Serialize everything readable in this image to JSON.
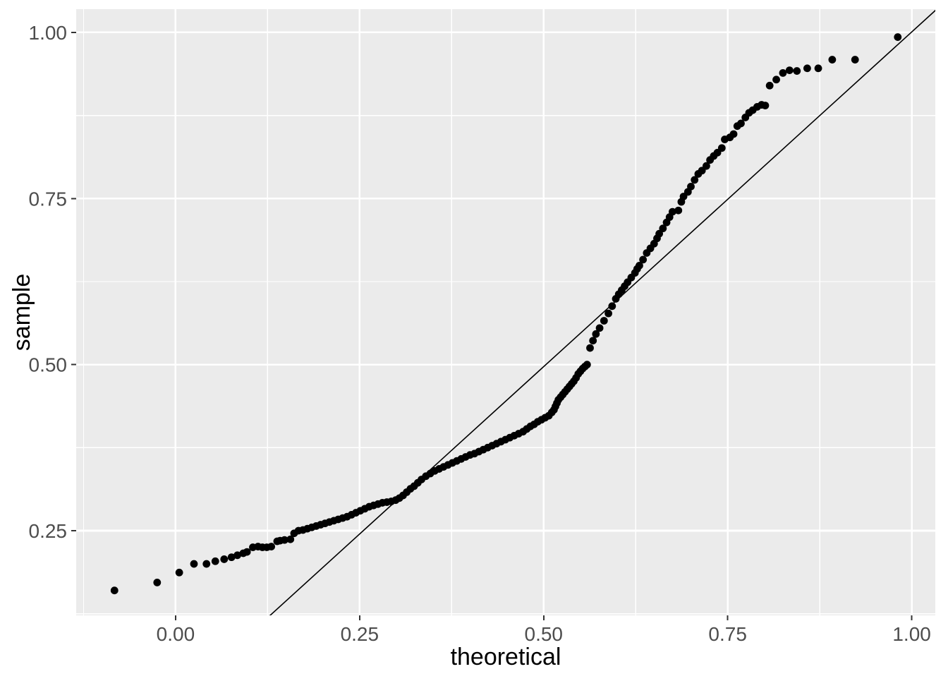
{
  "figure": {
    "background": "#FFFFFF"
  },
  "chart_data": {
    "type": "scatter",
    "subtype": "qq-plot",
    "title": "",
    "xlabel": "theoretical",
    "ylabel": "sample",
    "xlim": [
      -0.135,
      1.032
    ],
    "ylim": [
      0.1225,
      1.035
    ],
    "grid": "on",
    "legend": "none",
    "x_ticks": {
      "values": [
        0,
        0.25,
        0.5,
        0.75,
        1.0
      ],
      "labels": [
        "0.00",
        "0.25",
        "0.50",
        "0.75",
        "1.00"
      ]
    },
    "y_ticks": {
      "values": [
        0.25,
        0.5,
        0.75,
        1.0
      ],
      "labels": [
        "0.25",
        "0.50",
        "0.75",
        "1.00"
      ]
    },
    "x_minor_ticks": [
      -0.125,
      0.125,
      0.375,
      0.625,
      0.875
    ],
    "y_minor_ticks": [
      0.125,
      0.375,
      0.625,
      0.875
    ],
    "reference_line": {
      "x1": 0.126,
      "y1": 0.12,
      "x2": 1.033,
      "y2": 1.034,
      "slope_approx": 1.007,
      "intercept_approx": -0.007
    },
    "style": {
      "panel_bg": "#EBEBEB",
      "grid_color": "#FFFFFF",
      "major_grid_width": 2.6,
      "minor_grid_width": 1.3,
      "point_color": "#000000",
      "point_radius_px": 5.4,
      "line_color": "#000000",
      "line_width": 1.6,
      "tick_label_color": "#4D4D4D",
      "axis_title_color": "#000000",
      "tick_mark_color": "#333333"
    },
    "points": [
      [
        -0.083,
        0.16
      ],
      [
        -0.025,
        0.172
      ],
      [
        0.005,
        0.187
      ],
      [
        0.025,
        0.2
      ],
      [
        0.042,
        0.2
      ],
      [
        0.054,
        0.204
      ],
      [
        0.066,
        0.207
      ],
      [
        0.076,
        0.21
      ],
      [
        0.084,
        0.213
      ],
      [
        0.092,
        0.216
      ],
      [
        0.097,
        0.218
      ],
      [
        0.105,
        0.225
      ],
      [
        0.112,
        0.226
      ],
      [
        0.118,
        0.225
      ],
      [
        0.124,
        0.225
      ],
      [
        0.13,
        0.226
      ],
      [
        0.138,
        0.234
      ],
      [
        0.142,
        0.235
      ],
      [
        0.148,
        0.236
      ],
      [
        0.156,
        0.237
      ],
      [
        0.161,
        0.246
      ],
      [
        0.167,
        0.25
      ],
      [
        0.173,
        0.251
      ],
      [
        0.179,
        0.253
      ],
      [
        0.185,
        0.255
      ],
      [
        0.191,
        0.257
      ],
      [
        0.197,
        0.259
      ],
      [
        0.203,
        0.261
      ],
      [
        0.209,
        0.263
      ],
      [
        0.215,
        0.265
      ],
      [
        0.221,
        0.267
      ],
      [
        0.227,
        0.269
      ],
      [
        0.233,
        0.271
      ],
      [
        0.239,
        0.274
      ],
      [
        0.245,
        0.277
      ],
      [
        0.251,
        0.28
      ],
      [
        0.257,
        0.283
      ],
      [
        0.263,
        0.286
      ],
      [
        0.269,
        0.288
      ],
      [
        0.275,
        0.29
      ],
      [
        0.281,
        0.292
      ],
      [
        0.287,
        0.293
      ],
      [
        0.293,
        0.294
      ],
      [
        0.299,
        0.296
      ],
      [
        0.304,
        0.299
      ],
      [
        0.309,
        0.303
      ],
      [
        0.314,
        0.308
      ],
      [
        0.319,
        0.313
      ],
      [
        0.324,
        0.317
      ],
      [
        0.329,
        0.322
      ],
      [
        0.334,
        0.327
      ],
      [
        0.34,
        0.332
      ],
      [
        0.346,
        0.336
      ],
      [
        0.352,
        0.34
      ],
      [
        0.358,
        0.343
      ],
      [
        0.364,
        0.346
      ],
      [
        0.37,
        0.349
      ],
      [
        0.376,
        0.352
      ],
      [
        0.382,
        0.355
      ],
      [
        0.388,
        0.358
      ],
      [
        0.394,
        0.361
      ],
      [
        0.4,
        0.364
      ],
      [
        0.406,
        0.366
      ],
      [
        0.412,
        0.369
      ],
      [
        0.418,
        0.372
      ],
      [
        0.424,
        0.375
      ],
      [
        0.43,
        0.378
      ],
      [
        0.436,
        0.381
      ],
      [
        0.442,
        0.384
      ],
      [
        0.448,
        0.387
      ],
      [
        0.454,
        0.39
      ],
      [
        0.46,
        0.393
      ],
      [
        0.466,
        0.396
      ],
      [
        0.472,
        0.399
      ],
      [
        0.477,
        0.403
      ],
      [
        0.482,
        0.407
      ],
      [
        0.487,
        0.41
      ],
      [
        0.492,
        0.414
      ],
      [
        0.497,
        0.417
      ],
      [
        0.502,
        0.42
      ],
      [
        0.507,
        0.423
      ],
      [
        0.511,
        0.428
      ],
      [
        0.514,
        0.432
      ],
      [
        0.516,
        0.437
      ],
      [
        0.518,
        0.442
      ],
      [
        0.52,
        0.447
      ],
      [
        0.523,
        0.451
      ],
      [
        0.526,
        0.455
      ],
      [
        0.529,
        0.459
      ],
      [
        0.532,
        0.463
      ],
      [
        0.535,
        0.467
      ],
      [
        0.538,
        0.471
      ],
      [
        0.541,
        0.475
      ],
      [
        0.544,
        0.48
      ],
      [
        0.547,
        0.486
      ],
      [
        0.55,
        0.49
      ],
      [
        0.553,
        0.494
      ],
      [
        0.556,
        0.497
      ],
      [
        0.559,
        0.5
      ],
      [
        0.563,
        0.525
      ],
      [
        0.567,
        0.536
      ],
      [
        0.571,
        0.546
      ],
      [
        0.576,
        0.555
      ],
      [
        0.582,
        0.566
      ],
      [
        0.588,
        0.577
      ],
      [
        0.593,
        0.588
      ],
      [
        0.598,
        0.599
      ],
      [
        0.602,
        0.606
      ],
      [
        0.606,
        0.612
      ],
      [
        0.61,
        0.618
      ],
      [
        0.614,
        0.624
      ],
      [
        0.619,
        0.631
      ],
      [
        0.624,
        0.638
      ],
      [
        0.627,
        0.644
      ],
      [
        0.63,
        0.649
      ],
      [
        0.635,
        0.658
      ],
      [
        0.64,
        0.668
      ],
      [
        0.645,
        0.675
      ],
      [
        0.65,
        0.682
      ],
      [
        0.654,
        0.69
      ],
      [
        0.657,
        0.697
      ],
      [
        0.662,
        0.705
      ],
      [
        0.667,
        0.714
      ],
      [
        0.671,
        0.722
      ],
      [
        0.675,
        0.73
      ],
      [
        0.683,
        0.732
      ],
      [
        0.687,
        0.745
      ],
      [
        0.69,
        0.753
      ],
      [
        0.696,
        0.76
      ],
      [
        0.7,
        0.768
      ],
      [
        0.705,
        0.778
      ],
      [
        0.71,
        0.787
      ],
      [
        0.715,
        0.792
      ],
      [
        0.721,
        0.799
      ],
      [
        0.726,
        0.808
      ],
      [
        0.731,
        0.814
      ],
      [
        0.736,
        0.819
      ],
      [
        0.742,
        0.826
      ],
      [
        0.746,
        0.839
      ],
      [
        0.753,
        0.842
      ],
      [
        0.758,
        0.847
      ],
      [
        0.763,
        0.859
      ],
      [
        0.768,
        0.863
      ],
      [
        0.774,
        0.872
      ],
      [
        0.779,
        0.879
      ],
      [
        0.784,
        0.883
      ],
      [
        0.79,
        0.888
      ],
      [
        0.796,
        0.891
      ],
      [
        0.801,
        0.89
      ],
      [
        0.807,
        0.92
      ],
      [
        0.816,
        0.929
      ],
      [
        0.825,
        0.939
      ],
      [
        0.834,
        0.943
      ],
      [
        0.844,
        0.942
      ],
      [
        0.858,
        0.946
      ],
      [
        0.873,
        0.946
      ],
      [
        0.892,
        0.959
      ],
      [
        0.923,
        0.959
      ],
      [
        0.981,
        0.993
      ]
    ]
  }
}
